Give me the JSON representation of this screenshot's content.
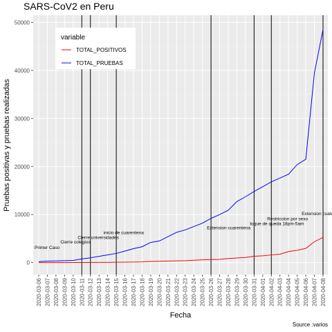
{
  "chart_data": {
    "type": "line",
    "title": "SARS-CoV2 en Peru",
    "xlabel": "Fecha",
    "ylabel": "Pruebas positivas y pruebas realizadas",
    "caption": "Source :varios",
    "ylim": [
      -2500,
      51500
    ],
    "y_ticks": [
      0,
      10000,
      20000,
      30000,
      40000,
      50000
    ],
    "legend": {
      "title": "variable",
      "position": "top-left-inside"
    },
    "grid": true,
    "background": "#ebebeb",
    "x": [
      "2020-03-06",
      "2020-03-07",
      "2020-03-08",
      "2020-03-09",
      "2020-03-10",
      "2020-03-11",
      "2020-03-12",
      "2020-03-13",
      "2020-03-14",
      "2020-03-15",
      "2020-03-16",
      "2020-03-17",
      "2020-03-18",
      "2020-03-19",
      "2020-03-20",
      "2020-03-21",
      "2020-03-22",
      "2020-03-23",
      "2020-03-24",
      "2020-03-25",
      "2020-03-26",
      "2020-03-27",
      "2020-03-28",
      "2020-03-29",
      "2020-03-30",
      "2020-03-31",
      "2020-04-01",
      "2020-04-02",
      "2020-04-03",
      "2020-04-04",
      "2020-04-05",
      "2020-04-06",
      "2020-04-07",
      "2020-04-08"
    ],
    "series": [
      {
        "name": "TOTAL_POSITIVOS",
        "color": "#ff0000",
        "values": [
          1,
          6,
          7,
          9,
          11,
          17,
          22,
          38,
          43,
          71,
          86,
          117,
          145,
          234,
          263,
          318,
          363,
          395,
          480,
          580,
          635,
          671,
          852,
          950,
          1065,
          1323,
          1414,
          1595,
          1746,
          2281,
          2561,
          2954,
          4342,
          5256
        ]
      },
      {
        "name": "TOTAL_PRUEBAS",
        "color": "#0000ff",
        "values": [
          200,
          300,
          350,
          400,
          450,
          750,
          1000,
          1300,
          1600,
          1900,
          2400,
          2900,
          3300,
          4200,
          4500,
          5400,
          6300,
          6800,
          7500,
          8200,
          9200,
          10000,
          10900,
          12700,
          13700,
          14800,
          15800,
          16800,
          17600,
          18400,
          20400,
          21500,
          39500,
          48500
        ]
      }
    ],
    "vlines": [
      "2020-03-11",
      "2020-03-12",
      "2020-03-15",
      "2020-03-26",
      "2020-03-31",
      "2020-04-02",
      "2020-04-08"
    ],
    "annotations": [
      {
        "text": "Primer Caso",
        "x": "2020-03-06",
        "y": 2800
      },
      {
        "text": "Cierre universidades",
        "x": "2020-03-11",
        "y": 4900
      },
      {
        "text": "Cierre colegios",
        "x": "2020-03-09",
        "y": 4000
      },
      {
        "text": "inicio de cuarentena",
        "x": "2020-03-14",
        "y": 5900
      },
      {
        "text": "Extension cuarentena",
        "x": "2020-03-26",
        "y": 6900
      },
      {
        "text": "toque de queda 18pm-5am",
        "x": "2020-03-31",
        "y": 7800
      },
      {
        "text": "Restriccion por sexo",
        "x": "2020-04-02",
        "y": 8800
      },
      {
        "text": "Extension cuater",
        "x": "2020-04-06",
        "y": 9900
      }
    ]
  }
}
